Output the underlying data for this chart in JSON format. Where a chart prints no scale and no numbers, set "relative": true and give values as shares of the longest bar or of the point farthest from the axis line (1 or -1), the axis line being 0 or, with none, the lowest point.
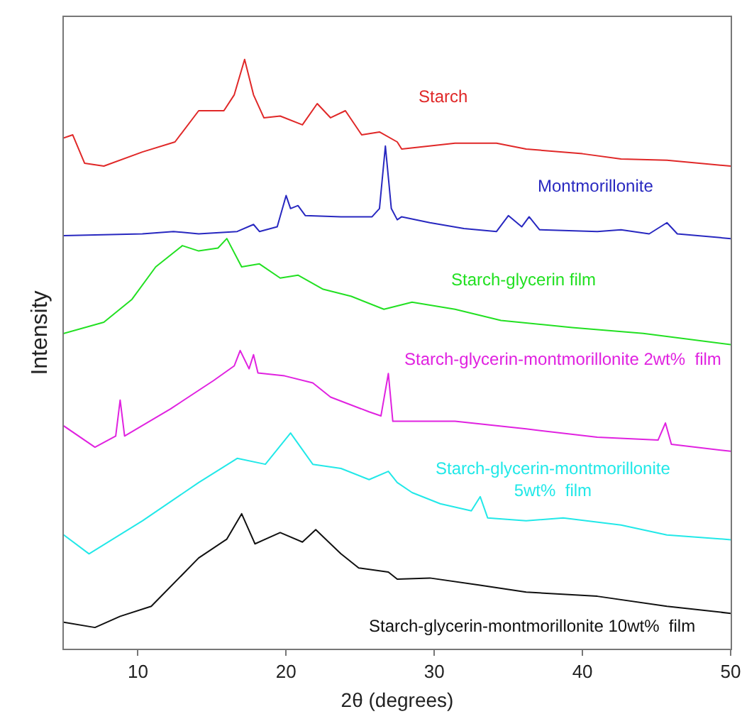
{
  "chart_data": {
    "type": "line",
    "relative": true,
    "xlabel": "2θ (degrees)",
    "ylabel": "Intensity",
    "xlim": [
      5,
      50
    ],
    "xticks": [
      10,
      20,
      30,
      40,
      50
    ],
    "grid": false,
    "legend": false,
    "marker": "none",
    "line_style": "solid",
    "series": [
      {
        "name": "Starch",
        "color": "#e02828",
        "x": [
          5.0,
          5.6,
          6.4,
          7.7,
          10.3,
          12.5,
          14.1,
          15.8,
          16.5,
          17.2,
          17.8,
          18.5,
          19.6,
          21.1,
          22.1,
          23.0,
          24.0,
          25.1,
          26.3,
          27.5,
          27.8,
          31.4,
          34.2,
          36.2,
          40.0,
          42.6,
          45.7,
          50.0
        ],
        "values": [
          0.867,
          0.872,
          0.824,
          0.819,
          0.843,
          0.86,
          0.913,
          0.913,
          0.94,
          1.0,
          0.94,
          0.901,
          0.904,
          0.889,
          0.925,
          0.901,
          0.913,
          0.872,
          0.877,
          0.86,
          0.848,
          0.858,
          0.858,
          0.848,
          0.84,
          0.831,
          0.829,
          0.819
        ]
      },
      {
        "name": "Montmorillonite",
        "color": "#2828c0",
        "x": [
          5.0,
          10.3,
          12.4,
          14.1,
          16.7,
          17.8,
          18.2,
          19.4,
          20.0,
          20.3,
          20.8,
          21.3,
          23.7,
          25.8,
          26.3,
          26.7,
          27.1,
          27.5,
          27.8,
          29.7,
          32.0,
          34.2,
          35.0,
          35.9,
          36.4,
          37.1,
          41.0,
          42.6,
          44.5,
          45.7,
          46.4,
          50.0
        ],
        "values": [
          0.701,
          0.704,
          0.708,
          0.704,
          0.708,
          0.72,
          0.708,
          0.716,
          0.769,
          0.747,
          0.752,
          0.735,
          0.733,
          0.733,
          0.747,
          0.853,
          0.747,
          0.728,
          0.733,
          0.723,
          0.713,
          0.708,
          0.735,
          0.716,
          0.733,
          0.711,
          0.708,
          0.711,
          0.704,
          0.723,
          0.704,
          0.696
        ]
      },
      {
        "name": "Starch-glycerin film",
        "color": "#22e022",
        "x": [
          5.0,
          7.7,
          9.6,
          11.2,
          13.0,
          14.1,
          15.4,
          16.0,
          17.0,
          18.2,
          19.6,
          20.8,
          22.5,
          24.4,
          26.6,
          28.5,
          31.4,
          34.5,
          39.3,
          44.1,
          50.0
        ],
        "values": [
          0.535,
          0.554,
          0.593,
          0.648,
          0.684,
          0.675,
          0.68,
          0.696,
          0.648,
          0.653,
          0.629,
          0.634,
          0.61,
          0.598,
          0.576,
          0.588,
          0.576,
          0.557,
          0.545,
          0.535,
          0.516
        ]
      },
      {
        "name": "Starch-glycerin-montmorillonite 2wt%  film",
        "color": "#e022e0",
        "x": [
          5.0,
          7.1,
          8.5,
          8.8,
          9.1,
          12.2,
          15.1,
          16.5,
          16.9,
          17.5,
          17.8,
          18.1,
          19.9,
          21.8,
          23.0,
          25.6,
          26.4,
          26.9,
          27.2,
          31.4,
          36.2,
          41.0,
          45.1,
          45.6,
          46.0,
          50.0
        ],
        "values": [
          0.378,
          0.342,
          0.361,
          0.422,
          0.361,
          0.407,
          0.455,
          0.48,
          0.506,
          0.475,
          0.499,
          0.468,
          0.463,
          0.451,
          0.427,
          0.402,
          0.395,
          0.467,
          0.386,
          0.386,
          0.373,
          0.359,
          0.354,
          0.383,
          0.347,
          0.335
        ]
      },
      {
        "name": "Starch-glycerin-montmorillonite 5wt%  film",
        "color": "#22e8e8",
        "x": [
          5.0,
          6.7,
          10.3,
          14.1,
          16.7,
          18.6,
          20.3,
          21.8,
          23.7,
          25.6,
          26.9,
          27.5,
          28.5,
          30.4,
          32.5,
          33.1,
          33.6,
          36.2,
          38.7,
          42.6,
          45.7,
          50.0
        ],
        "values": [
          0.193,
          0.161,
          0.217,
          0.282,
          0.323,
          0.313,
          0.366,
          0.313,
          0.306,
          0.287,
          0.301,
          0.282,
          0.265,
          0.246,
          0.234,
          0.258,
          0.222,
          0.217,
          0.222,
          0.21,
          0.193,
          0.185
        ]
      },
      {
        "name": "Starch-glycerin-montmorillonite 10wt%  film",
        "color": "#101010",
        "x": [
          5.0,
          7.1,
          8.8,
          10.9,
          14.1,
          16.0,
          17.0,
          17.9,
          19.6,
          21.1,
          22.0,
          23.7,
          24.9,
          26.9,
          27.5,
          29.7,
          33.0,
          36.2,
          41.0,
          45.7,
          50.0
        ],
        "values": [
          0.045,
          0.036,
          0.055,
          0.072,
          0.154,
          0.186,
          0.229,
          0.178,
          0.197,
          0.181,
          0.202,
          0.161,
          0.137,
          0.13,
          0.118,
          0.12,
          0.108,
          0.096,
          0.089,
          0.072,
          0.06
        ]
      }
    ]
  }
}
